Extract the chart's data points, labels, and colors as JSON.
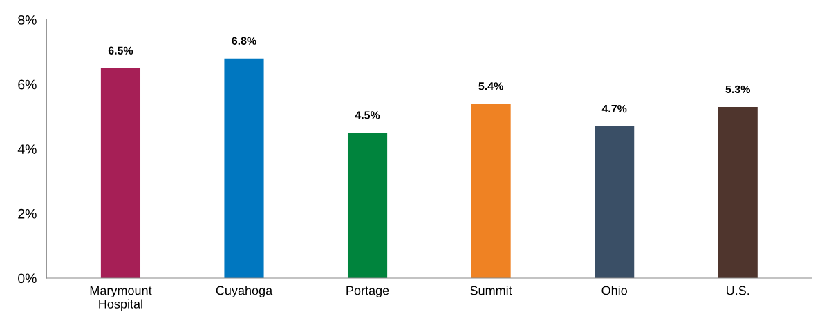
{
  "chart_data": {
    "type": "bar",
    "categories": [
      "Marymount\nHospital",
      "Cuyahoga",
      "Portage",
      "Summit",
      "Ohio",
      "U.S."
    ],
    "values": [
      6.5,
      6.8,
      4.5,
      5.4,
      4.7,
      5.3
    ],
    "colors": [
      "#a61f56",
      "#0077c0",
      "#00843d",
      "#ef8223",
      "#3a4f66",
      "#4f352d"
    ],
    "value_labels": [
      "6.5%",
      "6.8%",
      "4.5%",
      "5.4%",
      "4.7%",
      "5.3%"
    ],
    "ylim": [
      0,
      8
    ],
    "yticks": [
      {
        "value": 0,
        "label": "0%"
      },
      {
        "value": 2,
        "label": "2%"
      },
      {
        "value": 4,
        "label": "4%"
      },
      {
        "value": 6,
        "label": "6%"
      },
      {
        "value": 8,
        "label": "8%"
      }
    ],
    "grid": false,
    "legend": false
  }
}
